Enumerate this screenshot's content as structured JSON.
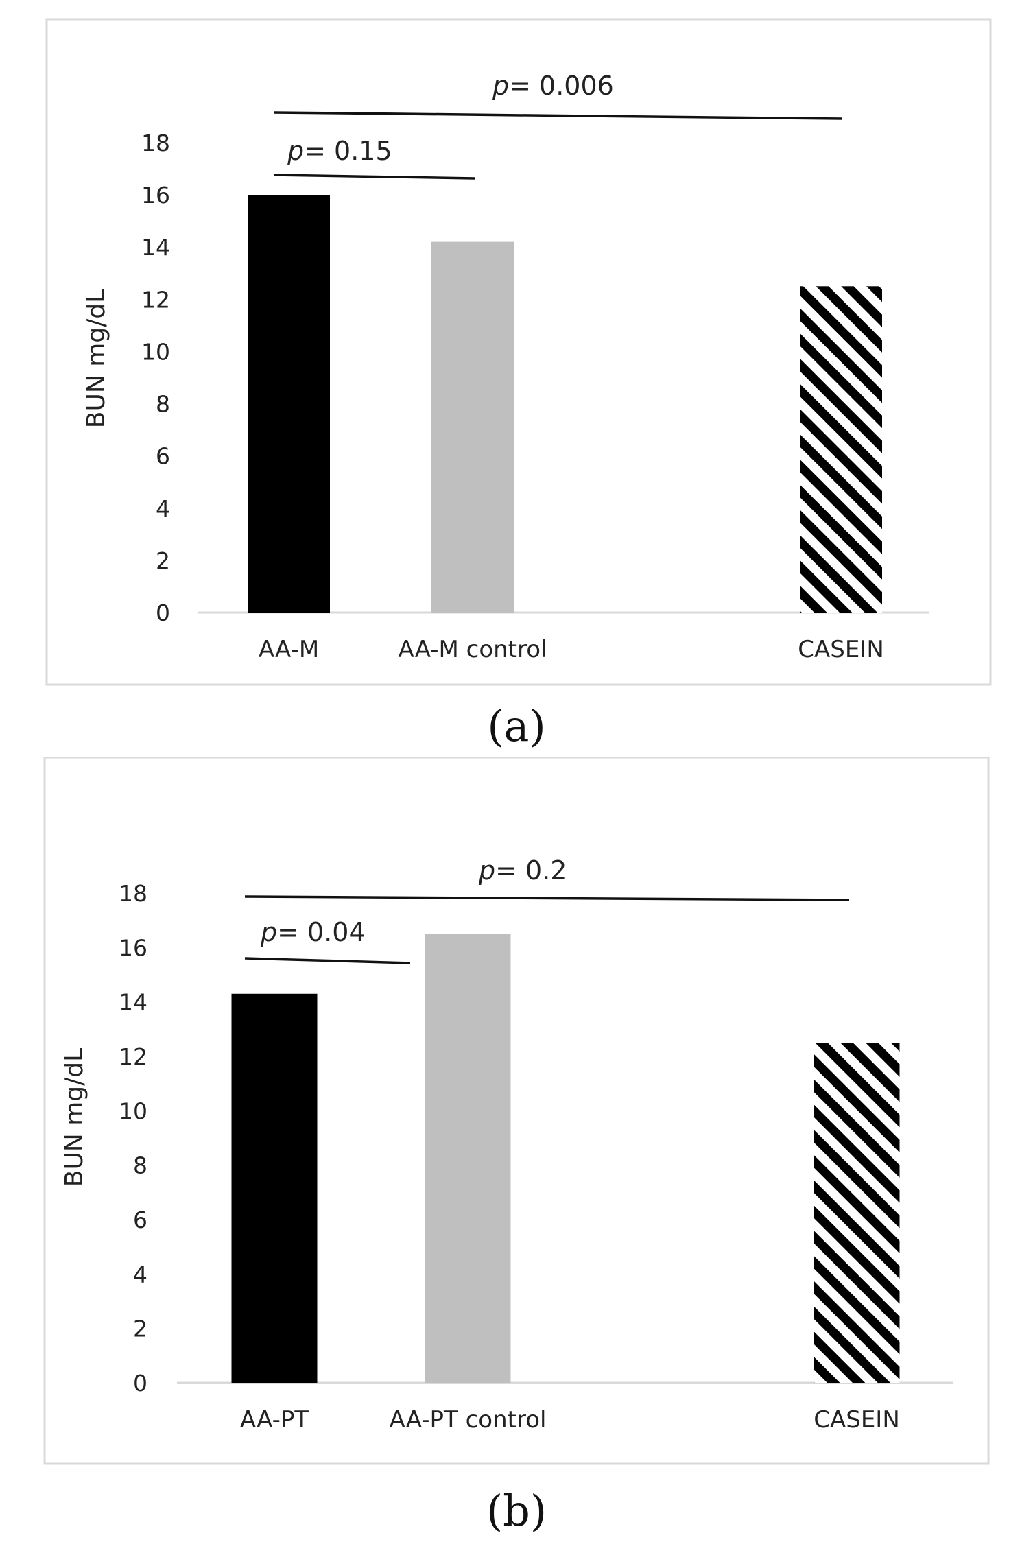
{
  "chart_data": [
    {
      "type": "bar",
      "panel_label": "(a)",
      "ylabel": "BUN mg/dL",
      "ylim": [
        0,
        18
      ],
      "yticks": [
        0,
        2,
        4,
        6,
        8,
        10,
        12,
        14,
        16,
        18
      ],
      "categories": [
        "AA-M",
        "AA-M control",
        "CASEIN"
      ],
      "values": [
        16,
        14.2,
        12.5
      ],
      "bar_styles": [
        "solid-black",
        "solid-gray",
        "hatched"
      ],
      "colors": {
        "black": "#000000",
        "gray": "#bfbfbf",
        "hatch": "#000000"
      },
      "annotations": [
        {
          "from": "AA-M",
          "to": "AA-M control",
          "label_prefix": "p",
          "label_value": "= 0.15"
        },
        {
          "from": "AA-M",
          "to": "CASEIN",
          "label_prefix": "p",
          "label_value": "= 0.006"
        }
      ]
    },
    {
      "type": "bar",
      "panel_label": "(b)",
      "ylabel": "BUN mg/dL",
      "ylim": [
        0,
        18
      ],
      "yticks": [
        0,
        2,
        4,
        6,
        8,
        10,
        12,
        14,
        16,
        18
      ],
      "categories": [
        "AA-PT",
        "AA-PT control",
        "CASEIN"
      ],
      "values": [
        14.3,
        16.5,
        12.5
      ],
      "bar_styles": [
        "solid-black",
        "solid-gray",
        "hatched"
      ],
      "colors": {
        "black": "#000000",
        "gray": "#bfbfbf",
        "hatch": "#000000"
      },
      "annotations": [
        {
          "from": "AA-PT",
          "to": "AA-PT control",
          "label_prefix": "p",
          "label_value": "= 0.04"
        },
        {
          "from": "AA-PT",
          "to": "CASEIN",
          "label_prefix": "p",
          "label_value": "= 0.2"
        }
      ]
    }
  ]
}
